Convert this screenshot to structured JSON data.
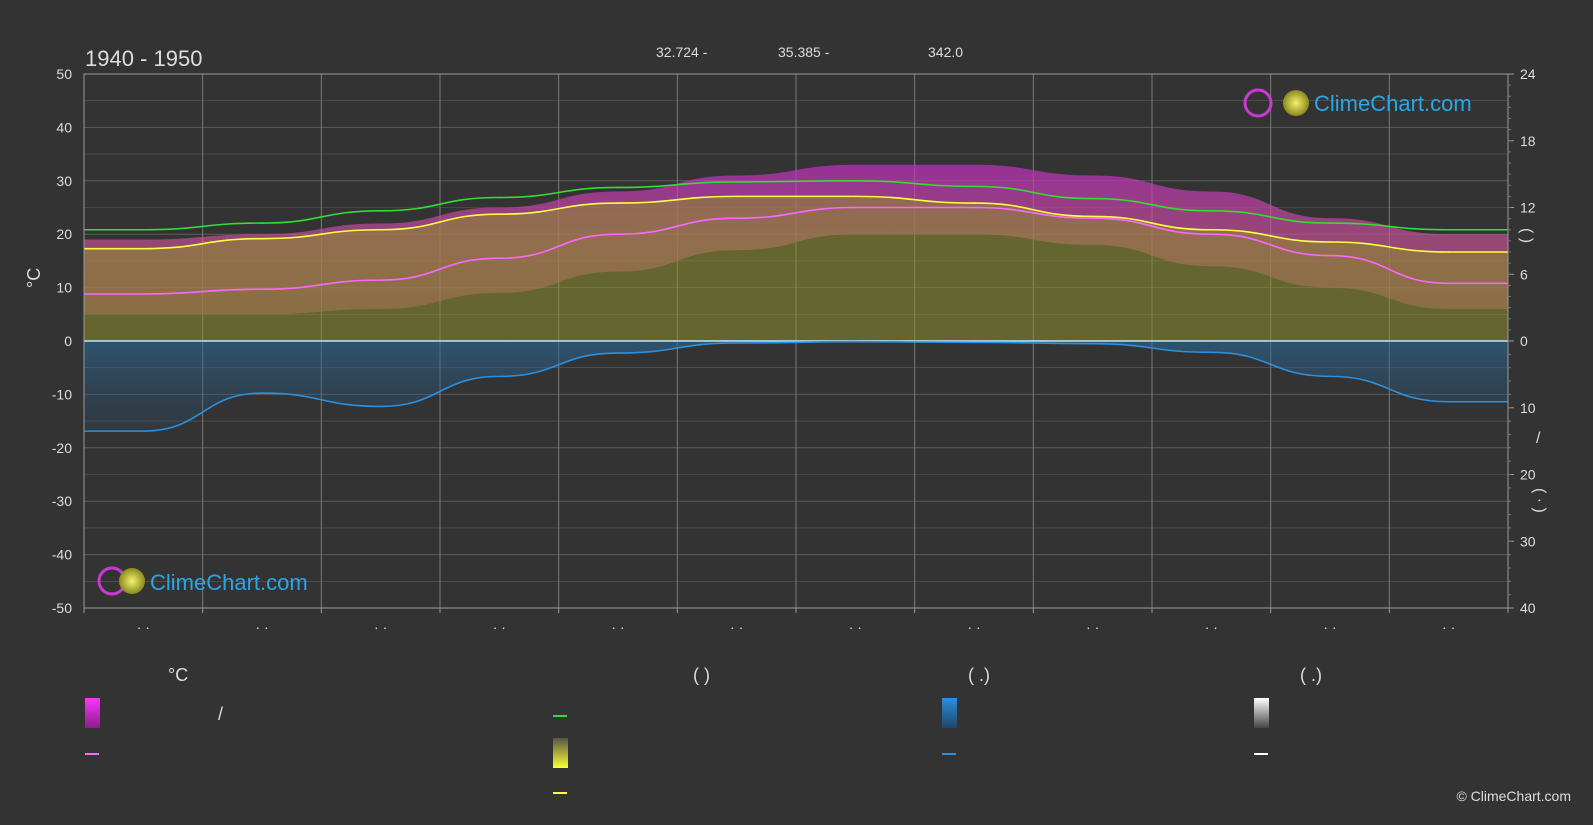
{
  "header": {
    "period": "1940 - 1950",
    "coords": [
      "32.724 -",
      "35.385 -",
      "342.0"
    ]
  },
  "axis": {
    "left_unit": "°C",
    "right_upper_glyph": "(        )",
    "right_lower_glyph_1": "/",
    "right_lower_glyph_2": "(  ·  )"
  },
  "logo": {
    "text": "ClimeChart.com"
  },
  "copyright": "© ClimeChart.com",
  "legend": {
    "col1_head": "°C",
    "col2_head": "(           )",
    "col3_head": "(   .)",
    "col4_head": "(   .)",
    "slash": "/"
  },
  "colors": {
    "background": "#333333",
    "grid": "#5c5c5c",
    "temp_range_band": "#d13bc8",
    "mean_temp": "#ff66ff",
    "daylight": "#33dd33",
    "sunshine_band": "#999933",
    "sunshine": "#ffff44",
    "precip_band": "#2a5f88",
    "precip": "#2a90e0",
    "snow": "#ffffff",
    "logo_blue": "#2aa6e6"
  },
  "chart_data": {
    "type": "line",
    "x_months": [
      1,
      2,
      3,
      4,
      5,
      6,
      7,
      8,
      9,
      10,
      11,
      12
    ],
    "x_tick_labels": [
      "· ·",
      "· ·",
      "· ·",
      "· ·",
      "· ·",
      "· ·",
      "· ·",
      "· ·",
      "· ·",
      "· ·",
      "· ·",
      "· ·"
    ],
    "left_axis": {
      "ylim": [
        -50,
        50
      ],
      "ticks": [
        50,
        40,
        30,
        20,
        10,
        0,
        -10,
        -20,
        -30,
        -40,
        -50
      ],
      "label": "°C"
    },
    "right_axis_upper": {
      "ylim": [
        0,
        24
      ],
      "ticks": [
        24,
        18,
        12,
        6,
        0
      ]
    },
    "right_axis_lower": {
      "ylim": [
        0,
        40
      ],
      "ticks": [
        10,
        20,
        30,
        40
      ]
    },
    "series": [
      {
        "name": "",
        "axis": "right_upper",
        "values": [
          10.0,
          10.6,
          11.7,
          12.9,
          13.8,
          14.3,
          14.4,
          13.9,
          12.8,
          11.7,
          10.6,
          10.0
        ]
      },
      {
        "name": "",
        "axis": "right_upper",
        "values": [
          8.3,
          9.2,
          10.0,
          11.4,
          12.4,
          13.0,
          13.0,
          12.4,
          11.2,
          10.0,
          8.9,
          8.0
        ]
      },
      {
        "name": "",
        "axis": "left",
        "values": [
          8.8,
          9.7,
          11.4,
          15.5,
          20.0,
          23.0,
          25.0,
          25.0,
          23.0,
          20.0,
          16.0,
          10.8
        ]
      },
      {
        "name": "",
        "axis": "right_lower",
        "values": [
          13.5,
          7.8,
          9.8,
          5.3,
          1.8,
          0.3,
          0.1,
          0.2,
          0.4,
          1.7,
          5.3,
          9.1
        ]
      }
    ],
    "bands": [
      {
        "name": "",
        "axis": "left",
        "low": [
          5,
          5,
          6,
          9,
          13,
          17,
          20,
          20,
          18,
          14,
          10,
          6
        ],
        "high": [
          19,
          20,
          22,
          25,
          28,
          31,
          33,
          33,
          31,
          28,
          23,
          20
        ]
      },
      {
        "name": "",
        "axis": "right_upper",
        "low": [
          0,
          0,
          0,
          0,
          0,
          0,
          0,
          0,
          0,
          0,
          0,
          0
        ],
        "high": [
          8.3,
          9.2,
          10.0,
          11.4,
          12.4,
          13.0,
          13.0,
          12.4,
          11.2,
          10.0,
          8.9,
          8.0
        ]
      }
    ],
    "grid": true,
    "legend": "bottom"
  }
}
